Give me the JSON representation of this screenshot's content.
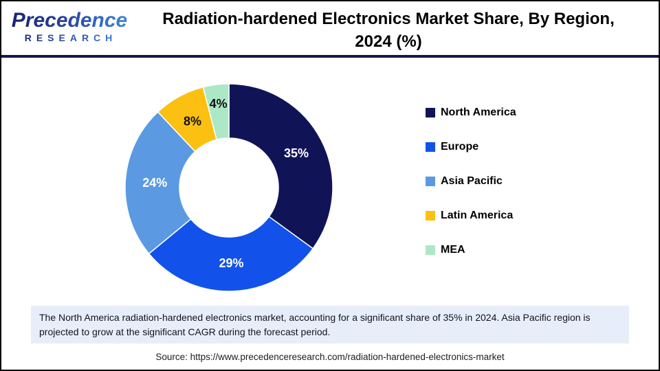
{
  "header": {
    "logo_line1": "Precedence",
    "logo_line2": "RESEARCH",
    "title_line1": "Radiation-hardened Electronics Market Share, By Region,",
    "title_line2": "2024 (%)"
  },
  "chart_data": {
    "type": "pie",
    "subtype": "donut",
    "title": "Radiation-hardened Electronics Market Share, By Region, 2024 (%)",
    "categories": [
      "North America",
      "Europe",
      "Asia Pacific",
      "Latin America",
      "MEA"
    ],
    "values": [
      35,
      29,
      24,
      8,
      4
    ],
    "display_labels": [
      "35%",
      "29%",
      "24%",
      "8%",
      "4%"
    ],
    "unit": "%",
    "colors": [
      "#101457",
      "#1252eb",
      "#5b9ae2",
      "#fcc013",
      "#ace8c6"
    ],
    "label_colors": [
      "#ffffff",
      "#ffffff",
      "#ffffff",
      "#101010",
      "#101010"
    ],
    "start_angle_deg": 0,
    "direction": "clockwise",
    "legend_position": "right",
    "inner_radius_ratio": 0.48
  },
  "note": {
    "text": "The North America radiation-hardened electronics market, accounting for a significant share of 35% in 2024. Asia Pacific region is projected to grow at the significant CAGR during the forecast period."
  },
  "source": {
    "text": "Source: https://www.precedenceresearch.com/radiation-hardened-electronics-market"
  }
}
